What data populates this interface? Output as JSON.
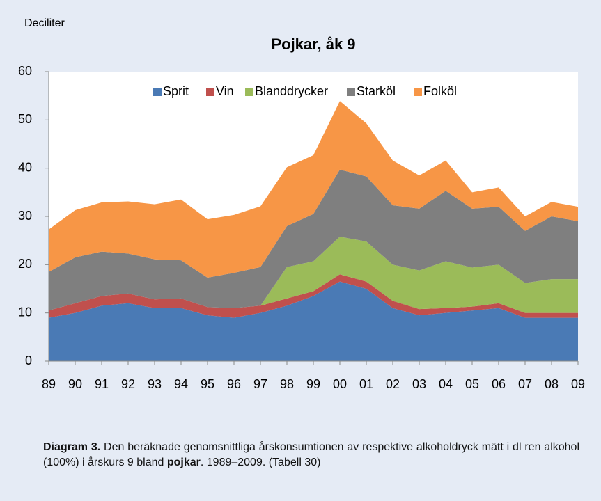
{
  "chart_data": {
    "type": "stacked_area",
    "title": "Pojkar, åk 9",
    "y_axis_label": "Deciliter",
    "categories": [
      "89",
      "90",
      "91",
      "92",
      "93",
      "94",
      "95",
      "96",
      "97",
      "98",
      "99",
      "00",
      "01",
      "02",
      "03",
      "04",
      "05",
      "06",
      "07",
      "08",
      "09"
    ],
    "series": [
      {
        "name": "Sprit",
        "color": "#4a7ab5",
        "values": [
          9,
          10,
          11.5,
          12,
          11,
          11,
          9.5,
          9,
          10,
          11.5,
          13.5,
          16.5,
          15,
          11,
          9.5,
          10,
          10.5,
          11,
          9,
          9,
          9
        ]
      },
      {
        "name": "Vin",
        "color": "#c0504d",
        "values": [
          1.5,
          2,
          2,
          2,
          1.8,
          2,
          1.7,
          2,
          1.5,
          1.5,
          1,
          1.5,
          1.5,
          1.5,
          1.3,
          1,
          0.8,
          1,
          1,
          1,
          1
        ]
      },
      {
        "name": "Blanddrycker",
        "color": "#9bbb59",
        "values": [
          0,
          0,
          0,
          0,
          0,
          0,
          0,
          0,
          0,
          6.5,
          6.2,
          7.8,
          8.3,
          7.5,
          8,
          9.7,
          8.1,
          8,
          6.2,
          7,
          7
        ]
      },
      {
        "name": "Starköl",
        "color": "#7f7f7f",
        "values": [
          8,
          9.5,
          9.2,
          8.3,
          8.3,
          7.9,
          6.1,
          7.3,
          8,
          8.5,
          9.8,
          13.9,
          13.5,
          12.3,
          12.8,
          14.6,
          12.2,
          12,
          10.8,
          13,
          12
        ]
      },
      {
        "name": "Folköl",
        "color": "#f79646",
        "values": [
          8.8,
          9.8,
          10.2,
          10.8,
          11.4,
          12.6,
          12.1,
          12,
          12.6,
          12.2,
          12.2,
          14.2,
          11,
          9.3,
          6.9,
          6.3,
          3.4,
          4,
          3,
          3,
          3
        ]
      }
    ],
    "ylim": [
      0,
      60
    ],
    "yticks": [
      0,
      10,
      20,
      30,
      40,
      50,
      60
    ],
    "legend": "top",
    "caption": {
      "label": "Diagram 3.",
      "text1": " Den beräknade genomsnittliga årskonsumtionen av respektive alkoholdryck mätt i dl ren alkohol (100%) i årskurs 9 bland ",
      "bold": "pojkar",
      "text2": ". 1989–2009. (Tabell 30)"
    }
  }
}
